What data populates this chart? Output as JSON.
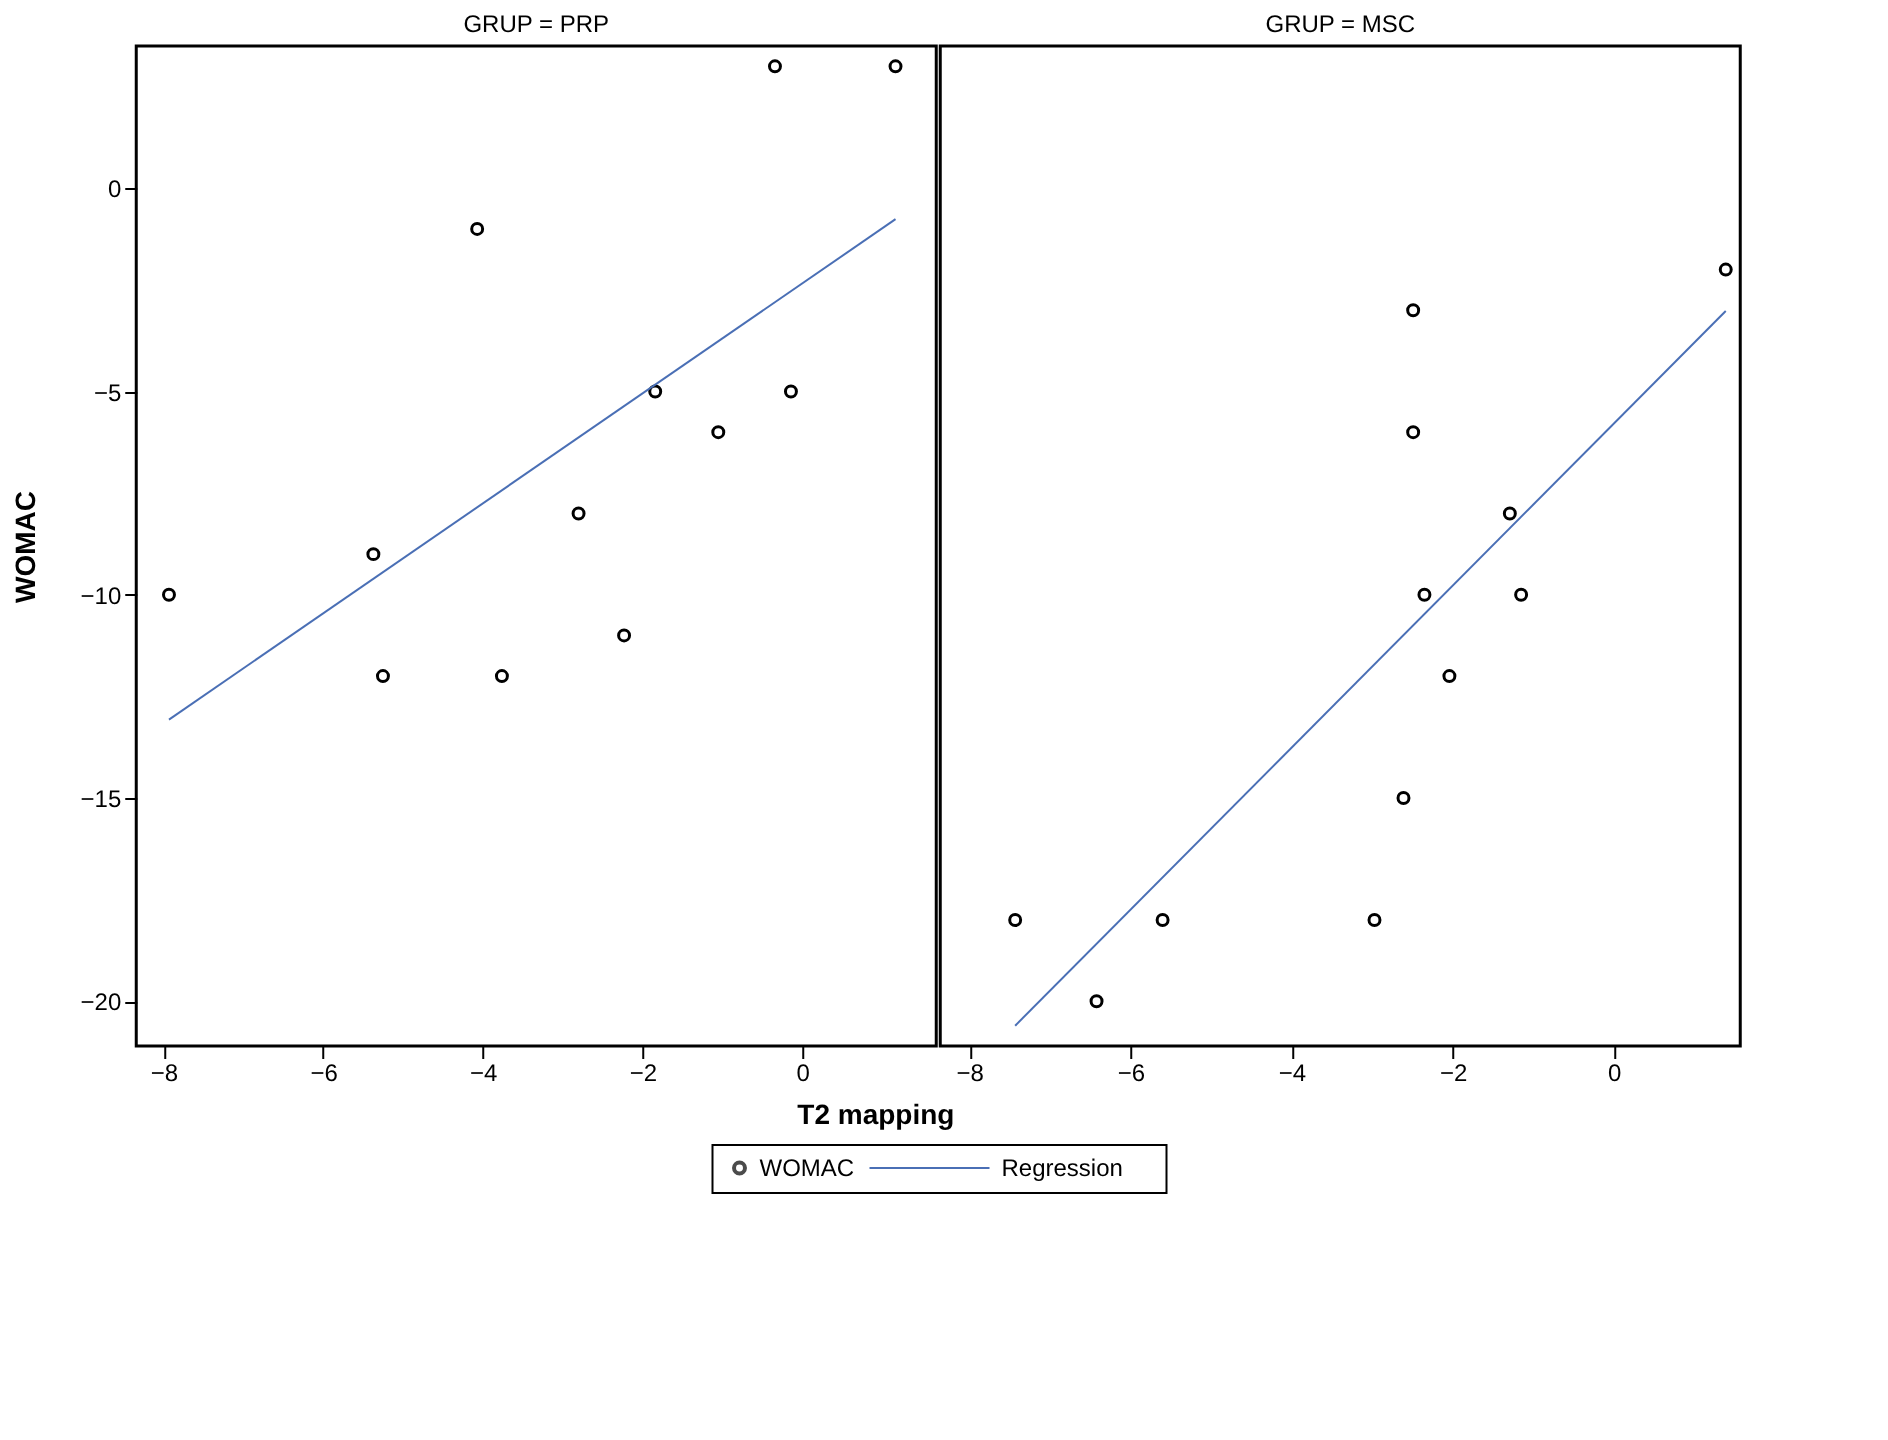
{
  "chart_data": [
    {
      "type": "scatter",
      "title": "GRUP = PRP",
      "xlabel": "T2 mapping",
      "ylabel": "WOMAC",
      "xlim": [
        -8.34,
        1.68
      ],
      "ylim": [
        -21.1,
        3.5
      ],
      "xticks": [
        -8,
        -6,
        -4,
        -2,
        0
      ],
      "yticks": [
        -20,
        -15,
        -10,
        -5,
        0
      ],
      "grid": false,
      "legend": "bottom",
      "series": [
        {
          "name": "WOMAC",
          "marker": "circle",
          "color": "#000000",
          "x": [
            -7.93,
            -5.37,
            -5.25,
            -4.07,
            -3.76,
            -2.8,
            -2.23,
            -1.84,
            -1.05,
            -0.34,
            -0.14,
            1.17
          ],
          "values": [
            -10,
            -9,
            -12,
            -1,
            -12,
            -8,
            -11,
            -5,
            -6,
            3,
            -5,
            3
          ]
        },
        {
          "name": "Regression",
          "type": "line",
          "marker": "none",
          "line_style": "solid",
          "color": "#4a6fb5",
          "x": [
            -7.93,
            1.17
          ],
          "values": [
            -13.07,
            -0.76
          ]
        }
      ]
    },
    {
      "type": "scatter",
      "title": "GRUP = MSC",
      "xlim": [
        -8.36,
        1.57
      ],
      "ylim": [
        -21.1,
        3.5
      ],
      "xticks": [
        -8,
        -6,
        -4,
        -2,
        0
      ],
      "yticks": [
        -20,
        -15,
        -10,
        -5,
        0
      ],
      "grid": false,
      "tick_labels": "x",
      "series": [
        {
          "marker": "circle",
          "color": "#000000",
          "x": [
            -7.43,
            -6.42,
            -5.6,
            -2.97,
            -2.61,
            -2.49,
            -2.49,
            -2.35,
            -2.04,
            -1.29,
            -1.15,
            1.39
          ],
          "values": [
            -18,
            -20,
            -18,
            -18,
            -15,
            -6,
            -3,
            -10,
            -12,
            -8,
            -10,
            -2
          ]
        },
        {
          "type": "line",
          "marker": "none",
          "line_style": "solid",
          "color": "#4a6fb5",
          "x": [
            -7.43,
            1.39
          ],
          "values": [
            -20.6,
            -3.02
          ]
        }
      ]
    }
  ]
}
